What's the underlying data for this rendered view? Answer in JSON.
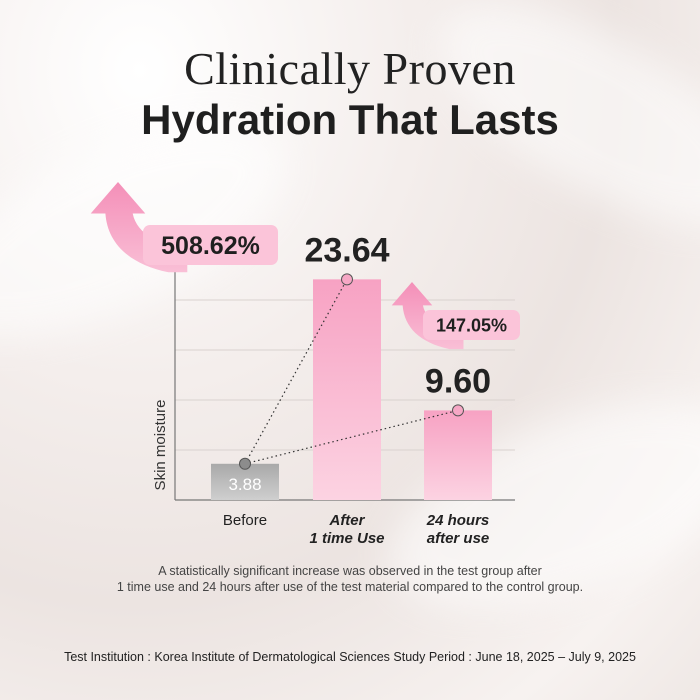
{
  "heading": {
    "line1": "Clinically Proven",
    "line2": "Hydration That Lasts"
  },
  "chart_data": {
    "type": "bar",
    "categories": [
      "Before",
      "After\n1 time Use",
      "24 hours\nafter use"
    ],
    "values": [
      3.88,
      23.64,
      9.6
    ],
    "value_labels": [
      "3.88",
      "23.64",
      "9.60"
    ],
    "ylabel": "Skin moisture",
    "xlabel": "",
    "ylim": [
      0,
      30
    ],
    "grid": true,
    "colors": {
      "before": "#b3b3b3",
      "after": "#f79bbd",
      "after_light": "#fcd7e5",
      "accent": "#f48fb8",
      "text": "#222222"
    },
    "increases": [
      {
        "label": "508.62%",
        "from": "Before",
        "to": "After\n1 time Use"
      },
      {
        "label": "147.05%",
        "from": "Before",
        "to": "24 hours\nafter use"
      }
    ]
  },
  "footnote": {
    "line1": "A statistically significant increase was observed in the test group after",
    "line2": "1 time use and 24 hours after use of the test material compared to the control group."
  },
  "institution": "Test Institution : Korea Institute of Dermatological Sciences Study Period : June 18, 2025 – July 9, 2025"
}
